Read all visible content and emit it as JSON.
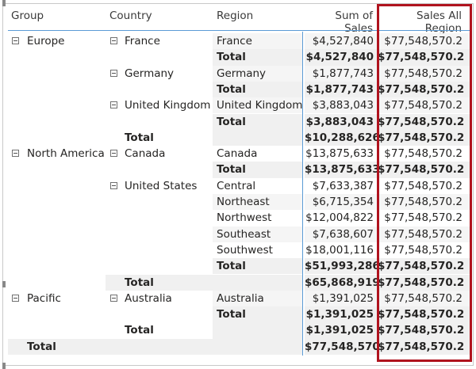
{
  "headers": {
    "group": "Group",
    "country": "Country",
    "region": "Region",
    "sum_sales": "Sum of Sales",
    "sales_all_region": "Sales All Region"
  },
  "rows": [
    {
      "group": "Europe",
      "group_toggle": true,
      "country": "France",
      "country_toggle": true,
      "region": "France",
      "sum": "$4,527,840",
      "all": "$77,548,570.2",
      "level": "region"
    },
    {
      "region": "Total",
      "sum": "$4,527,840",
      "all": "$77,548,570.2",
      "level": "country_total"
    },
    {
      "country": "Germany",
      "country_toggle": true,
      "region": "Germany",
      "sum": "$1,877,743",
      "all": "$77,548,570.2",
      "level": "region"
    },
    {
      "region": "Total",
      "sum": "$1,877,743",
      "all": "$77,548,570.2",
      "level": "country_total"
    },
    {
      "country": "United Kingdom",
      "country_toggle": true,
      "region": "United Kingdom",
      "sum": "$3,883,043",
      "all": "$77,548,570.2",
      "level": "region"
    },
    {
      "region": "Total",
      "sum": "$3,883,043",
      "all": "$77,548,570.2",
      "level": "country_total"
    },
    {
      "country": "Total",
      "sum": "$10,288,626",
      "all": "$77,548,570.2",
      "level": "group_total"
    },
    {
      "group": "North America",
      "group_toggle": true,
      "country": "Canada",
      "country_toggle": true,
      "region": "Canada",
      "sum": "$13,875,633",
      "all": "$77,548,570.2",
      "level": "region"
    },
    {
      "region": "Total",
      "sum": "$13,875,633",
      "all": "$77,548,570.2",
      "level": "country_total"
    },
    {
      "country": "United States",
      "country_toggle": true,
      "region": "Central",
      "sum": "$7,633,387",
      "all": "$77,548,570.2",
      "level": "region"
    },
    {
      "region": "Northeast",
      "sum": "$6,715,354",
      "all": "$77,548,570.2",
      "level": "region"
    },
    {
      "region": "Northwest",
      "sum": "$12,004,822",
      "all": "$77,548,570.2",
      "level": "region"
    },
    {
      "region": "Southeast",
      "sum": "$7,638,607",
      "all": "$77,548,570.2",
      "level": "region"
    },
    {
      "region": "Southwest",
      "sum": "$18,001,116",
      "all": "$77,548,570.2",
      "level": "region"
    },
    {
      "region": "Total",
      "sum": "$51,993,286",
      "all": "$77,548,570.2",
      "level": "country_total"
    },
    {
      "country": "Total",
      "sum": "$65,868,919",
      "all": "$77,548,570.2",
      "level": "group_total"
    },
    {
      "group": "Pacific",
      "group_toggle": true,
      "country": "Australia",
      "country_toggle": true,
      "region": "Australia",
      "sum": "$1,391,025",
      "all": "$77,548,570.2",
      "level": "region"
    },
    {
      "region": "Total",
      "sum": "$1,391,025",
      "all": "$77,548,570.2",
      "level": "country_total"
    },
    {
      "country": "Total",
      "sum": "$1,391,025",
      "all": "$77,548,570.2",
      "level": "group_total"
    },
    {
      "group": "Total",
      "sum": "$77,548,570",
      "all": "$77,548,570.2",
      "level": "grand_total"
    }
  ]
}
